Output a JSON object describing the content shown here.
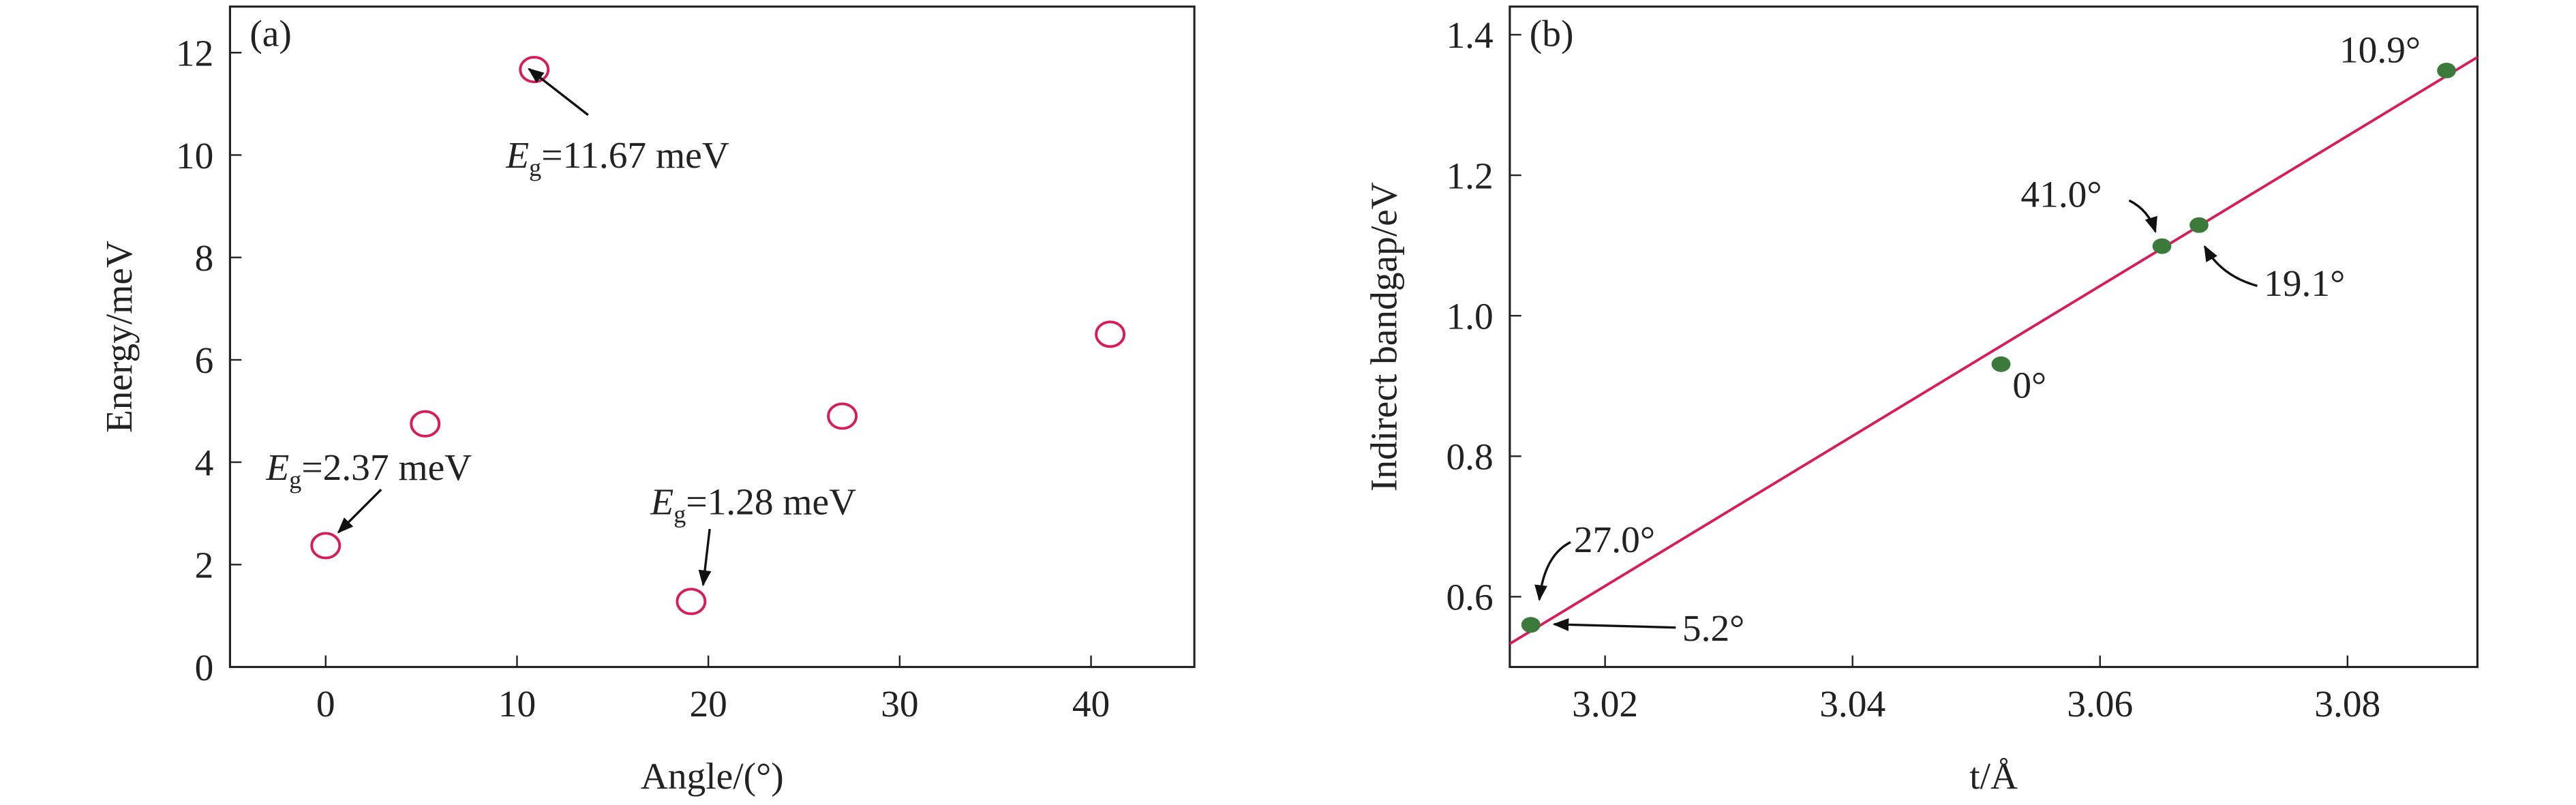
{
  "chart_data": [
    {
      "type": "scatter",
      "panel_label": "(a)",
      "xlabel": "Angle/(°)",
      "ylabel": "Energy/meV",
      "x": [
        0,
        5.2,
        10.9,
        19.1,
        27.0,
        41.0
      ],
      "y": [
        2.37,
        4.75,
        11.67,
        1.28,
        4.9,
        6.5
      ],
      "marker_color": "#d81b5a",
      "marker_fill": "none",
      "xlim": [
        -5,
        45.4
      ],
      "ylim": [
        0,
        12.9
      ],
      "xticks": [
        0,
        10,
        20,
        30,
        40
      ],
      "yticks": [
        0,
        2,
        4,
        6,
        8,
        10,
        12
      ],
      "annotations": [
        {
          "symbol": "E",
          "subscript": "g",
          "text": "=11.67 meV"
        },
        {
          "symbol": "E",
          "subscript": "g",
          "text": "=2.37 meV"
        },
        {
          "symbol": "E",
          "subscript": "g",
          "text": "=1.28 meV"
        }
      ]
    },
    {
      "type": "scatter",
      "panel_label": "(b)",
      "xlabel": "t/Å",
      "ylabel": "Indirect bandgap/eV",
      "x": [
        3.088,
        3.065,
        3.068,
        3.052,
        3.014,
        3.014
      ],
      "y": [
        1.349,
        1.099,
        1.129,
        0.931,
        0.56,
        0.56
      ],
      "point_labels": [
        "10.9°",
        "41.0°",
        "19.1°",
        "0°",
        "27.0°",
        "5.2°"
      ],
      "marker_color": "#3b7a3b",
      "marker_fill": "#3b7a3b",
      "fit": {
        "color": "#d81b5a",
        "x": [
          3.0123,
          3.0905
        ],
        "y": [
          0.533,
          1.368
        ]
      },
      "xlim": [
        3.0123,
        3.0905
      ],
      "ylim": [
        0.5,
        1.44
      ],
      "xticks": [
        3.02,
        3.04,
        3.06,
        3.08
      ],
      "yticks": [
        0.6,
        0.8,
        {
          "value": 1,
          "label": "1.0"
        },
        1.2,
        1.4
      ]
    }
  ]
}
